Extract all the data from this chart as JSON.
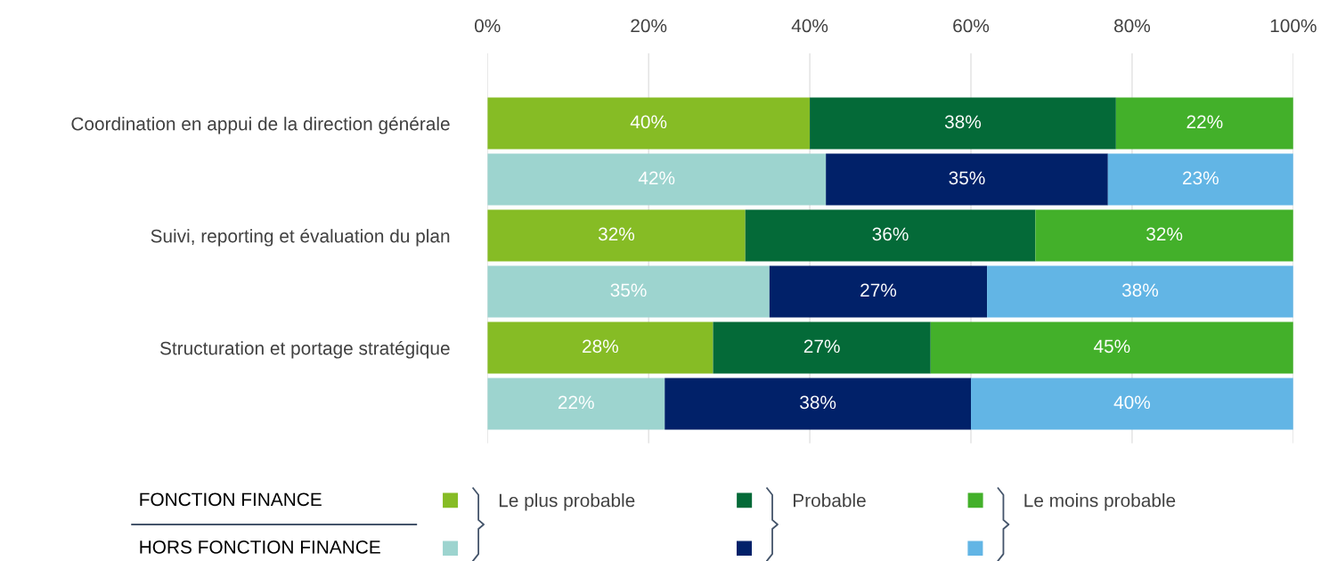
{
  "chart_data": {
    "type": "bar",
    "orientation": "horizontal",
    "stacked": true,
    "grid": "x",
    "legend": "bottom",
    "categories": [
      "Coordination en appui de la direction générale",
      null,
      "Suivi, reporting et évaluation du plan",
      null,
      "Structuration et portage stratégique",
      null
    ],
    "xlim": [
      0,
      100
    ],
    "xticks": [
      {
        "value": 0,
        "label": "0%"
      },
      {
        "value": 20,
        "label": "20%"
      },
      {
        "value": 40,
        "label": "40%"
      },
      {
        "value": 60,
        "label": "60%"
      },
      {
        "value": 80,
        "label": "80%"
      },
      {
        "value": 100,
        "label": "100%"
      }
    ],
    "series": [
      {
        "name": "Le plus probable",
        "color": "#86bc25",
        "values": [
          40,
          null,
          32,
          null,
          28,
          null
        ],
        "value_labels": [
          "40%",
          null,
          "32%",
          null,
          "28%",
          null
        ]
      },
      {
        "name": "Probable",
        "color": "#046a38",
        "values": [
          38,
          null,
          36,
          null,
          27,
          null
        ],
        "value_labels": [
          "38%",
          null,
          "36%",
          null,
          "27%",
          null
        ]
      },
      {
        "name": "Le moins probable",
        "color": "#43b02a",
        "values": [
          22,
          null,
          32,
          null,
          45,
          null
        ],
        "value_labels": [
          "22%",
          null,
          "32%",
          null,
          "45%",
          null
        ]
      },
      {
        "color": "#9dd4cf",
        "values": [
          null,
          42,
          null,
          35,
          null,
          22
        ],
        "value_labels": [
          null,
          "42%",
          null,
          "35%",
          null,
          "22%"
        ]
      },
      {
        "color": "#012169",
        "values": [
          null,
          35,
          null,
          27,
          null,
          38
        ],
        "value_labels": [
          null,
          "35%",
          null,
          "27%",
          null,
          "38%"
        ]
      },
      {
        "color": "#62b5e5",
        "values": [
          null,
          23,
          null,
          38,
          null,
          40
        ],
        "value_labels": [
          null,
          "23%",
          null,
          "38%",
          null,
          "40%"
        ]
      }
    ],
    "annotations": [
      "FONCTION FINANCE",
      "HORS FONCTION FINANCE"
    ]
  }
}
